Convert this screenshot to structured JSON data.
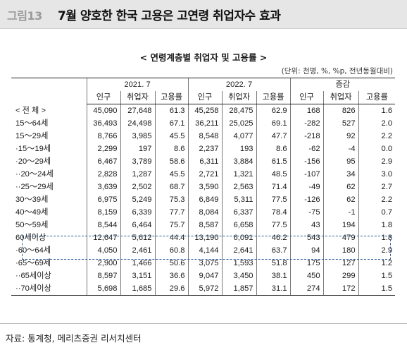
{
  "header": {
    "fig_label": "그림13",
    "title": "7월 양호한 한국 고용은 고연령 취업자수 효과"
  },
  "subtitle": "< 연령계층별 취업자 및 고용률 >",
  "unit": "(단위: 천명, %, %p, 전년동월대비)",
  "table": {
    "group_headers": [
      "2021. 7",
      "2022. 7",
      "증감"
    ],
    "sub_headers": [
      "인구",
      "취업자",
      "고용률",
      "인구",
      "취업자",
      "고용률",
      "인구",
      "취업자",
      "고용률"
    ],
    "rows": [
      {
        "label": "< 전    체 >",
        "values": [
          "45,090",
          "27,648",
          "61.3",
          "45,258",
          "28,475",
          "62.9",
          "168",
          "826",
          "1.6"
        ]
      },
      {
        "label": "15～64세",
        "values": [
          "36,493",
          "24,498",
          "67.1",
          "36,211",
          "25,025",
          "69.1",
          "-282",
          "527",
          "2.0"
        ]
      },
      {
        "label": "15～29세",
        "values": [
          "8,766",
          "3,985",
          "45.5",
          "8,548",
          "4,077",
          "47.7",
          "-218",
          "92",
          "2.2"
        ]
      },
      {
        "label": "·15～19세",
        "values": [
          "2,299",
          "197",
          "8.6",
          "2,237",
          "193",
          "8.6",
          "-62",
          "-4",
          "0.0"
        ]
      },
      {
        "label": "·20～29세",
        "values": [
          "6,467",
          "3,789",
          "58.6",
          "6,311",
          "3,884",
          "61.5",
          "-156",
          "95",
          "2.9"
        ]
      },
      {
        "label": "··20～24세",
        "values": [
          "2,828",
          "1,287",
          "45.5",
          "2,721",
          "1,321",
          "48.5",
          "-107",
          "34",
          "3.0"
        ]
      },
      {
        "label": "··25～29세",
        "values": [
          "3,639",
          "2,502",
          "68.7",
          "3,590",
          "2,563",
          "71.4",
          "-49",
          "62",
          "2.7"
        ]
      },
      {
        "label": "30～39세",
        "values": [
          "6,975",
          "5,249",
          "75.3",
          "6,849",
          "5,311",
          "77.5",
          "-126",
          "62",
          "2.2"
        ]
      },
      {
        "label": "40～49세",
        "values": [
          "8,159",
          "6,339",
          "77.7",
          "8,084",
          "6,337",
          "78.4",
          "-75",
          "-1",
          "0.7"
        ]
      },
      {
        "label": "50～59세",
        "values": [
          "8,544",
          "6,464",
          "75.7",
          "8,587",
          "6,658",
          "77.5",
          "43",
          "194",
          "1.8"
        ]
      },
      {
        "label": "60세이상",
        "values": [
          "12,647",
          "5,612",
          "44.4",
          "13,190",
          "6,091",
          "46.2",
          "543",
          "479",
          "1.8"
        ]
      },
      {
        "label": "·60～64세",
        "values": [
          "4,050",
          "2,461",
          "60.8",
          "4,144",
          "2,641",
          "63.7",
          "94",
          "180",
          "2.9"
        ]
      },
      {
        "label": "·65～69세",
        "values": [
          "2,900",
          "1,466",
          "50.6",
          "3,075",
          "1,593",
          "51.8",
          "175",
          "127",
          "1.2"
        ]
      },
      {
        "label": "··65세이상",
        "values": [
          "8,597",
          "3,151",
          "36.6",
          "9,047",
          "3,450",
          "38.1",
          "450",
          "299",
          "1.5"
        ]
      },
      {
        "label": "··70세이상",
        "values": [
          "5,698",
          "1,685",
          "29.6",
          "5,972",
          "1,857",
          "31.1",
          "274",
          "172",
          "1.5"
        ]
      }
    ],
    "highlight_color": "#2e5c94"
  },
  "source": "자료: 통계청, 메리츠증권 리서치센터"
}
